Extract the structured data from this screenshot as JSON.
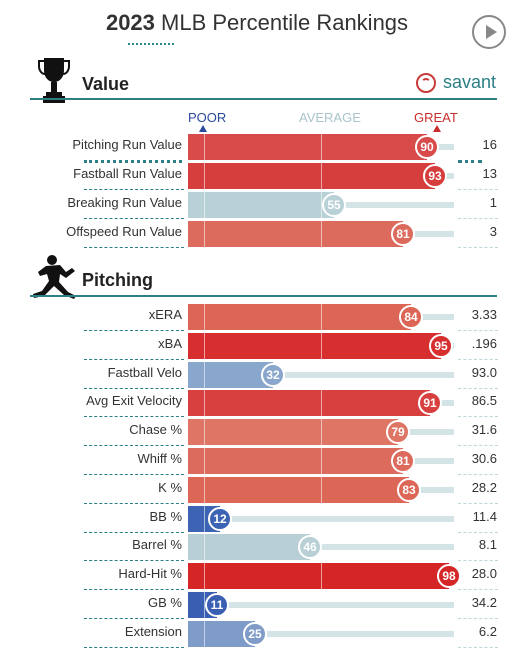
{
  "header": {
    "title_year": "2023",
    "title_rest": "MLB Percentile Rankings"
  },
  "brand": {
    "text": "savant"
  },
  "scale": {
    "poor": "POOR",
    "average": "AVERAGE",
    "great": "GREAT"
  },
  "sections": [
    {
      "title": "Value",
      "icon": "trophy-icon"
    },
    {
      "title": "Pitching",
      "icon": "pitcher-icon"
    }
  ],
  "value_rows": [
    {
      "label": "Pitching Run Value",
      "percentile": 90,
      "value": "16",
      "color": "#d94a4a"
    },
    {
      "label": "Fastball Run Value",
      "percentile": 93,
      "value": "13",
      "color": "#d63d3d"
    },
    {
      "label": "Breaking Run Value",
      "percentile": 55,
      "value": "1",
      "color": "#b8d1d6"
    },
    {
      "label": "Offspeed Run Value",
      "percentile": 81,
      "value": "3",
      "color": "#dd6b5d"
    }
  ],
  "pitching_rows": [
    {
      "label": "xERA",
      "percentile": 84,
      "value": "3.33",
      "color": "#dd6555"
    },
    {
      "label": "xBA",
      "percentile": 95,
      "value": ".196",
      "color": "#d72f2f"
    },
    {
      "label": "Fastball Velo",
      "percentile": 32,
      "value": "93.0",
      "color": "#89a6cc"
    },
    {
      "label": "Avg Exit Velocity",
      "percentile": 91,
      "value": "86.5",
      "color": "#d84040"
    },
    {
      "label": "Chase %",
      "percentile": 79,
      "value": "31.6",
      "color": "#de7565"
    },
    {
      "label": "Whiff %",
      "percentile": 81,
      "value": "30.6",
      "color": "#dd6b5d"
    },
    {
      "label": "K %",
      "percentile": 83,
      "value": "28.2",
      "color": "#dd6757"
    },
    {
      "label": "BB %",
      "percentile": 12,
      "value": "11.4",
      "color": "#3d63b4"
    },
    {
      "label": "Barrel %",
      "percentile": 46,
      "value": "8.1",
      "color": "#b9cfd6"
    },
    {
      "label": "Hard-Hit %",
      "percentile": 98,
      "value": "28.0",
      "color": "#d42626"
    },
    {
      "label": "GB %",
      "percentile": 11,
      "value": "34.2",
      "color": "#3a5fb2"
    },
    {
      "label": "Extension",
      "percentile": 25,
      "value": "6.2",
      "color": "#7f9cc9"
    }
  ]
}
